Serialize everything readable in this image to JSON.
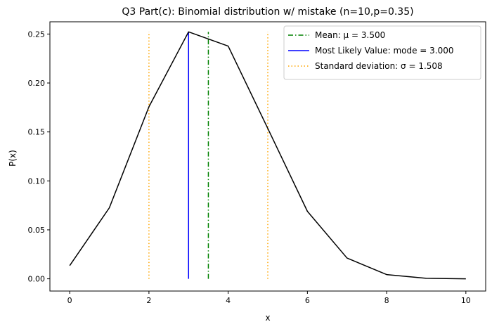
{
  "chart_data": {
    "type": "line",
    "title": "Q3 Part(c): Binomial distribution w/ mistake (n=10,p=0.35)",
    "xlabel": "x",
    "ylabel": "P(x)",
    "xlim": [
      -0.5,
      10.5
    ],
    "ylim": [
      -0.0125,
      0.2625
    ],
    "x_ticks": [
      0,
      2,
      4,
      6,
      8,
      10
    ],
    "y_ticks": [
      0.0,
      0.05,
      0.1,
      0.15,
      0.2,
      0.25
    ],
    "y_tick_labels": [
      "0.00",
      "0.05",
      "0.10",
      "0.15",
      "0.20",
      "0.25"
    ],
    "grid": false,
    "legend_position": "top-right",
    "series": [
      {
        "type": "line",
        "color": "#000000",
        "x": [
          0,
          1,
          2,
          3,
          4,
          5,
          6,
          7,
          8,
          9,
          10
        ],
        "y": [
          0.0135,
          0.0725,
          0.1757,
          0.2522,
          0.2377,
          0.1536,
          0.0689,
          0.0212,
          0.0043,
          0.0005,
          0.0
        ]
      }
    ],
    "vertical_lines": [
      {
        "x": 3.5,
        "y_range": [
          0.0,
          0.2522
        ],
        "color": "#008000",
        "style": "dashdot",
        "legend": "Mean: μ = 3.500"
      },
      {
        "x": 3.0,
        "y_range": [
          0.0,
          0.2522
        ],
        "color": "#0000ff",
        "style": "solid",
        "legend": "Most Likely Value: mode = 3.000"
      },
      {
        "x": 2.0,
        "y_range": [
          0.0,
          0.2522
        ],
        "color": "#ffa500",
        "style": "dotted",
        "legend": "Standard deviation: σ = 1.508"
      },
      {
        "x": 5.0,
        "y_range": [
          0.0,
          0.2522
        ],
        "color": "#ffa500",
        "style": "dotted",
        "legend": ""
      }
    ]
  }
}
